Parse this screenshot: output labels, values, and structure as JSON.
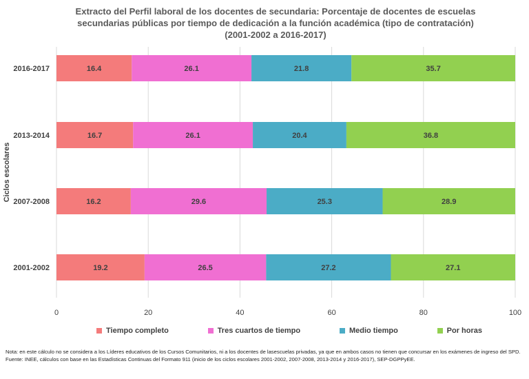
{
  "chart_data": {
    "type": "bar",
    "orientation": "horizontal",
    "stacked": true,
    "title": "Extracto del Perfil laboral de los docentes de secundaria: Porcentaje de docentes de escuelas secundarias públicas por tiempo de dedicación a la función académica (tipo de contratación) (2001-2002 a 2016-2017)",
    "ylabel": "Ciclos escolares",
    "xlabel": "",
    "categories": [
      "2016-2017",
      "2013-2014",
      "2007-2008",
      "2001-2002"
    ],
    "xlim": [
      0,
      100
    ],
    "xticks": [
      "0",
      "20",
      "40",
      "60",
      "80",
      "100"
    ],
    "grid": true,
    "legend_position": "bottom",
    "series": [
      {
        "name": "Tiempo completo",
        "color": "#f47b7b",
        "values": [
          16.4,
          16.7,
          16.2,
          19.2
        ]
      },
      {
        "name": "Tres cuartos de tiempo",
        "color": "#f06fd2",
        "values": [
          26.1,
          26.1,
          29.6,
          26.5
        ]
      },
      {
        "name": "Medio tiempo",
        "color": "#4bacc6",
        "values": [
          21.8,
          20.4,
          25.3,
          27.2
        ]
      },
      {
        "name": "Por horas",
        "color": "#92d050",
        "values": [
          35.7,
          36.8,
          28.9,
          27.1
        ]
      }
    ]
  },
  "notes": {
    "nota": "Nota: en este cálculo no se considera a los Líderes educativos de los Cursos Comunitarios, ni a los docentes de lasescuelas privadas, ya que en ambos casos no tienen que concursar en los exámenes de ingreso del SPD.",
    "fuente": "Fuente: INEE, cálculos con base en las Estadísticas Continuas del Formato 911 (inicio de los ciclos escolares 2001-2002, 2007-2008, 2013-2014 y 2016-2017), SEP-DGPPyEE."
  }
}
